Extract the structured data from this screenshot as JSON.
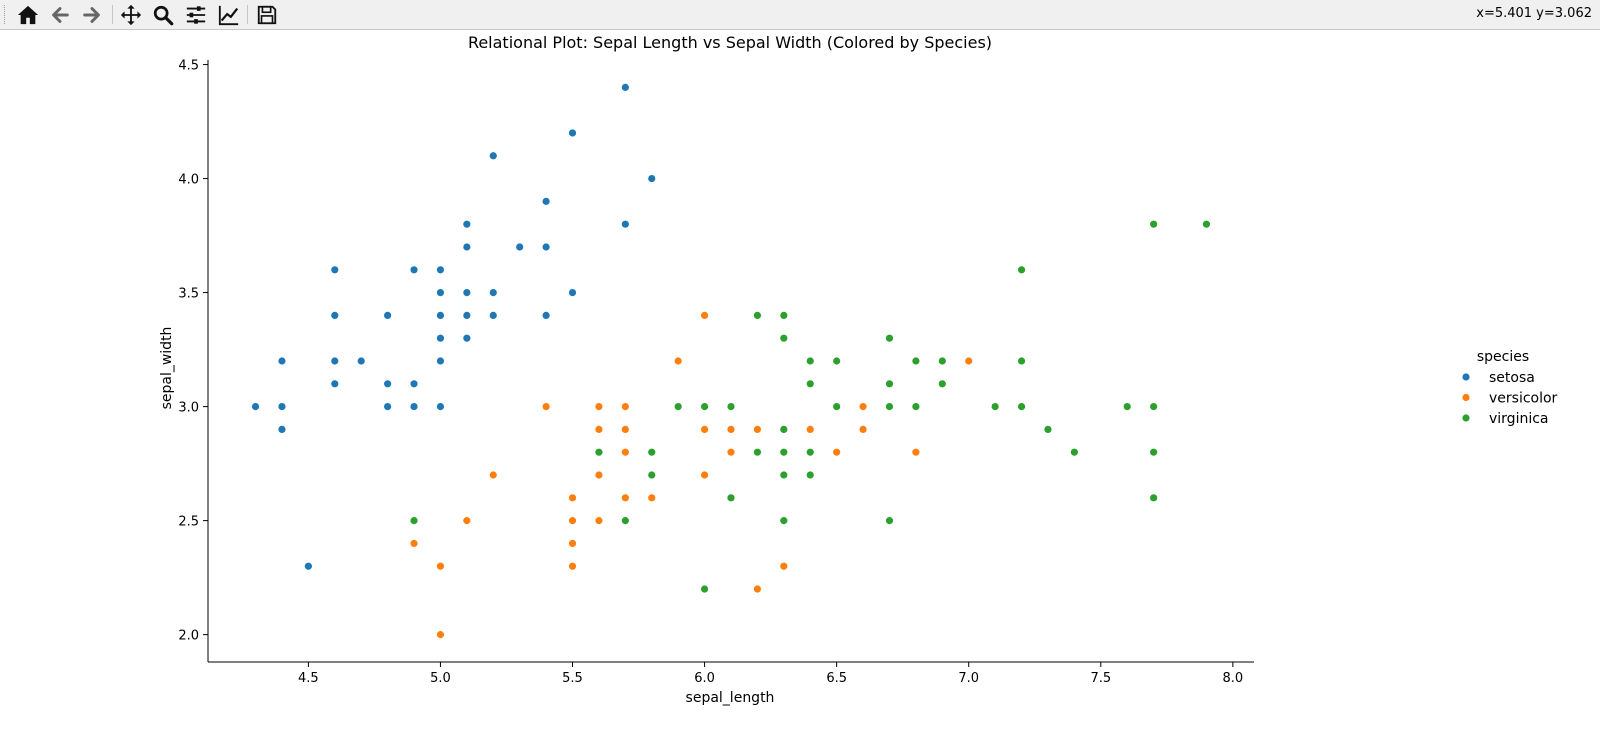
{
  "toolbar": {
    "buttons": [
      {
        "name": "home-icon",
        "label": "Home"
      },
      {
        "name": "back-icon",
        "label": "Back"
      },
      {
        "name": "forward-icon",
        "label": "Forward"
      },
      {
        "name": "pan-icon",
        "label": "Pan"
      },
      {
        "name": "zoom-icon",
        "label": "Zoom"
      },
      {
        "name": "configure-subplots-icon",
        "label": "Subplots"
      },
      {
        "name": "edit-axis-icon",
        "label": "Customize"
      },
      {
        "name": "save-icon",
        "label": "Save"
      }
    ],
    "coord_readout": "x=5.401 y=3.062"
  },
  "chart_data": {
    "type": "scatter",
    "title": "Relational Plot: Sepal Length vs Sepal Width (Colored by Species)",
    "xlabel": "sepal_length",
    "ylabel": "sepal_width",
    "xlim": [
      4.12,
      8.08
    ],
    "ylim": [
      1.88,
      4.52
    ],
    "xticks": [
      "4.5",
      "5.0",
      "5.5",
      "6.0",
      "6.5",
      "7.0",
      "7.5",
      "8.0"
    ],
    "yticks": [
      "2.0",
      "2.5",
      "3.0",
      "3.5",
      "4.0",
      "4.5"
    ],
    "grid": false,
    "legend_title": "species",
    "legend_placement": "right",
    "series": [
      {
        "name": "setosa",
        "color": "#1f77b4",
        "points": [
          [
            5.1,
            3.5
          ],
          [
            4.9,
            3.0
          ],
          [
            4.7,
            3.2
          ],
          [
            4.6,
            3.1
          ],
          [
            5.0,
            3.6
          ],
          [
            5.4,
            3.9
          ],
          [
            4.6,
            3.4
          ],
          [
            5.0,
            3.4
          ],
          [
            4.4,
            2.9
          ],
          [
            4.9,
            3.1
          ],
          [
            5.4,
            3.7
          ],
          [
            4.8,
            3.4
          ],
          [
            4.8,
            3.0
          ],
          [
            4.3,
            3.0
          ],
          [
            5.8,
            4.0
          ],
          [
            5.7,
            4.4
          ],
          [
            5.4,
            3.9
          ],
          [
            5.1,
            3.5
          ],
          [
            5.7,
            3.8
          ],
          [
            5.1,
            3.8
          ],
          [
            5.4,
            3.4
          ],
          [
            5.1,
            3.7
          ],
          [
            4.6,
            3.6
          ],
          [
            5.1,
            3.3
          ],
          [
            4.8,
            3.4
          ],
          [
            5.0,
            3.0
          ],
          [
            5.0,
            3.4
          ],
          [
            5.2,
            3.5
          ],
          [
            5.2,
            3.4
          ],
          [
            4.7,
            3.2
          ],
          [
            4.8,
            3.1
          ],
          [
            5.4,
            3.4
          ],
          [
            5.2,
            4.1
          ],
          [
            5.5,
            4.2
          ],
          [
            4.9,
            3.1
          ],
          [
            5.0,
            3.2
          ],
          [
            5.5,
            3.5
          ],
          [
            4.9,
            3.6
          ],
          [
            4.4,
            3.0
          ],
          [
            5.1,
            3.4
          ],
          [
            5.0,
            3.5
          ],
          [
            4.5,
            2.3
          ],
          [
            4.4,
            3.2
          ],
          [
            5.0,
            3.5
          ],
          [
            5.1,
            3.8
          ],
          [
            4.8,
            3.0
          ],
          [
            5.1,
            3.8
          ],
          [
            4.6,
            3.2
          ],
          [
            5.3,
            3.7
          ],
          [
            5.0,
            3.3
          ]
        ]
      },
      {
        "name": "versicolor",
        "color": "#ff7f0e",
        "points": [
          [
            7.0,
            3.2
          ],
          [
            6.4,
            3.2
          ],
          [
            6.9,
            3.1
          ],
          [
            5.5,
            2.3
          ],
          [
            6.5,
            2.8
          ],
          [
            5.7,
            2.8
          ],
          [
            6.3,
            3.3
          ],
          [
            4.9,
            2.4
          ],
          [
            6.6,
            2.9
          ],
          [
            5.2,
            2.7
          ],
          [
            5.0,
            2.0
          ],
          [
            5.9,
            3.0
          ],
          [
            6.0,
            2.2
          ],
          [
            6.1,
            2.9
          ],
          [
            5.6,
            2.9
          ],
          [
            6.7,
            3.1
          ],
          [
            5.6,
            3.0
          ],
          [
            5.8,
            2.7
          ],
          [
            6.2,
            2.2
          ],
          [
            5.6,
            2.5
          ],
          [
            5.9,
            3.2
          ],
          [
            6.1,
            2.8
          ],
          [
            6.3,
            2.5
          ],
          [
            6.1,
            2.8
          ],
          [
            6.4,
            2.9
          ],
          [
            6.6,
            3.0
          ],
          [
            6.8,
            2.8
          ],
          [
            6.7,
            3.0
          ],
          [
            6.0,
            2.9
          ],
          [
            5.7,
            2.6
          ],
          [
            5.5,
            2.4
          ],
          [
            5.5,
            2.4
          ],
          [
            5.8,
            2.7
          ],
          [
            6.0,
            2.7
          ],
          [
            5.4,
            3.0
          ],
          [
            6.0,
            3.4
          ],
          [
            6.7,
            3.1
          ],
          [
            6.3,
            2.3
          ],
          [
            5.6,
            3.0
          ],
          [
            5.5,
            2.5
          ],
          [
            5.5,
            2.6
          ],
          [
            6.1,
            3.0
          ],
          [
            5.8,
            2.6
          ],
          [
            5.0,
            2.3
          ],
          [
            5.6,
            2.7
          ],
          [
            5.7,
            3.0
          ],
          [
            5.7,
            2.9
          ],
          [
            6.2,
            2.9
          ],
          [
            5.1,
            2.5
          ],
          [
            5.7,
            2.8
          ]
        ]
      },
      {
        "name": "virginica",
        "color": "#2ca02c",
        "points": [
          [
            6.3,
            3.3
          ],
          [
            5.8,
            2.7
          ],
          [
            7.1,
            3.0
          ],
          [
            6.3,
            2.9
          ],
          [
            6.5,
            3.0
          ],
          [
            7.6,
            3.0
          ],
          [
            4.9,
            2.5
          ],
          [
            7.3,
            2.9
          ],
          [
            6.7,
            2.5
          ],
          [
            7.2,
            3.6
          ],
          [
            6.5,
            3.2
          ],
          [
            6.4,
            2.7
          ],
          [
            6.8,
            3.0
          ],
          [
            5.7,
            2.5
          ],
          [
            5.8,
            2.8
          ],
          [
            6.4,
            3.2
          ],
          [
            6.5,
            3.0
          ],
          [
            7.7,
            3.8
          ],
          [
            7.7,
            2.6
          ],
          [
            6.0,
            2.2
          ],
          [
            6.9,
            3.2
          ],
          [
            5.6,
            2.8
          ],
          [
            7.7,
            2.8
          ],
          [
            6.3,
            2.7
          ],
          [
            6.7,
            3.3
          ],
          [
            7.2,
            3.2
          ],
          [
            6.2,
            2.8
          ],
          [
            6.1,
            3.0
          ],
          [
            6.4,
            2.8
          ],
          [
            7.2,
            3.0
          ],
          [
            7.4,
            2.8
          ],
          [
            7.9,
            3.8
          ],
          [
            6.4,
            2.8
          ],
          [
            6.3,
            2.8
          ],
          [
            6.1,
            2.6
          ],
          [
            7.7,
            3.0
          ],
          [
            6.3,
            3.4
          ],
          [
            6.4,
            3.1
          ],
          [
            6.0,
            3.0
          ],
          [
            6.9,
            3.1
          ],
          [
            6.7,
            3.1
          ],
          [
            6.9,
            3.1
          ],
          [
            5.8,
            2.7
          ],
          [
            6.8,
            3.2
          ],
          [
            6.7,
            3.3
          ],
          [
            6.7,
            3.0
          ],
          [
            6.3,
            2.5
          ],
          [
            6.5,
            3.0
          ],
          [
            6.2,
            3.4
          ],
          [
            5.9,
            3.0
          ]
        ]
      }
    ]
  }
}
